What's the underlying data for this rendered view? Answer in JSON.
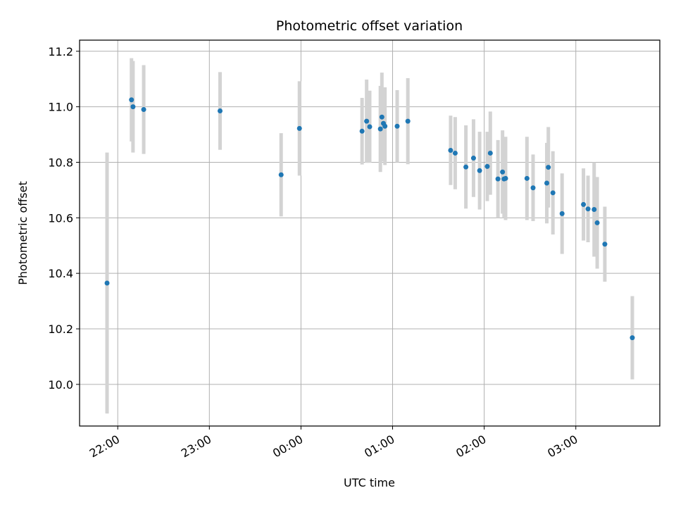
{
  "chart_data": {
    "type": "scatter",
    "title": "Photometric offset variation",
    "xlabel": "UTC time",
    "ylabel": "Photometric offset",
    "x_format": "HH:MM",
    "x_range": [
      "2000-01-01T21:35",
      "2000-01-02T03:55"
    ],
    "ylim": [
      9.85,
      11.24
    ],
    "grid": true,
    "x_ticks": [
      {
        "time": "2000-01-01T22:00",
        "label": "22:00"
      },
      {
        "time": "2000-01-01T23:00",
        "label": "23:00"
      },
      {
        "time": "2000-01-02T00:00",
        "label": "00:00"
      },
      {
        "time": "2000-01-02T01:00",
        "label": "01:00"
      },
      {
        "time": "2000-01-02T02:00",
        "label": "02:00"
      },
      {
        "time": "2000-01-02T03:00",
        "label": "03:00"
      }
    ],
    "y_ticks": [
      {
        "value": 10.0,
        "label": "10.0"
      },
      {
        "value": 10.2,
        "label": "10.2"
      },
      {
        "value": 10.4,
        "label": "10.4"
      },
      {
        "value": 10.6,
        "label": "10.6"
      },
      {
        "value": 10.8,
        "label": "10.8"
      },
      {
        "value": 11.0,
        "label": "11.0"
      },
      {
        "value": 11.2,
        "label": "11.2"
      }
    ],
    "marker_color": "#1f77b4",
    "errorbar_color": "#d3d3d3",
    "points": [
      {
        "x": "2000-01-01T21:53",
        "y": 10.365,
        "err": 0.47
      },
      {
        "x": "2000-01-01T22:09",
        "y": 11.025,
        "err": 0.15
      },
      {
        "x": "2000-01-01T22:10",
        "y": 11.0,
        "err": 0.165
      },
      {
        "x": "2000-01-01T22:17",
        "y": 10.99,
        "err": 0.16
      },
      {
        "x": "2000-01-01T23:07",
        "y": 10.985,
        "err": 0.14
      },
      {
        "x": "2000-01-01T23:47",
        "y": 10.755,
        "err": 0.15
      },
      {
        "x": "2000-01-01T23:59",
        "y": 10.922,
        "err": 0.17
      },
      {
        "x": "2000-01-02T00:40",
        "y": 10.912,
        "err": 0.12
      },
      {
        "x": "2000-01-02T00:43",
        "y": 10.948,
        "err": 0.15
      },
      {
        "x": "2000-01-02T00:45",
        "y": 10.928,
        "err": 0.13
      },
      {
        "x": "2000-01-02T00:52",
        "y": 10.92,
        "err": 0.155
      },
      {
        "x": "2000-01-02T00:53",
        "y": 10.963,
        "err": 0.16
      },
      {
        "x": "2000-01-02T00:54",
        "y": 10.94,
        "err": 0.13
      },
      {
        "x": "2000-01-02T00:55",
        "y": 10.93,
        "err": 0.14
      },
      {
        "x": "2000-01-02T01:03",
        "y": 10.93,
        "err": 0.13
      },
      {
        "x": "2000-01-02T01:10",
        "y": 10.948,
        "err": 0.155
      },
      {
        "x": "2000-01-02T01:38",
        "y": 10.843,
        "err": 0.125
      },
      {
        "x": "2000-01-02T01:41",
        "y": 10.833,
        "err": 0.13
      },
      {
        "x": "2000-01-02T01:48",
        "y": 10.783,
        "err": 0.15
      },
      {
        "x": "2000-01-02T01:53",
        "y": 10.815,
        "err": 0.14
      },
      {
        "x": "2000-01-02T01:57",
        "y": 10.77,
        "err": 0.14
      },
      {
        "x": "2000-01-02T02:02",
        "y": 10.785,
        "err": 0.125
      },
      {
        "x": "2000-01-02T02:04",
        "y": 10.833,
        "err": 0.15
      },
      {
        "x": "2000-01-02T02:09",
        "y": 10.74,
        "err": 0.14
      },
      {
        "x": "2000-01-02T02:12",
        "y": 10.765,
        "err": 0.15
      },
      {
        "x": "2000-01-02T02:13",
        "y": 10.74,
        "err": 0.14
      },
      {
        "x": "2000-01-02T02:14",
        "y": 10.742,
        "err": 0.15
      },
      {
        "x": "2000-01-02T02:28",
        "y": 10.742,
        "err": 0.15
      },
      {
        "x": "2000-01-02T02:32",
        "y": 10.708,
        "err": 0.12
      },
      {
        "x": "2000-01-02T02:41",
        "y": 10.725,
        "err": 0.145
      },
      {
        "x": "2000-01-02T02:42",
        "y": 10.782,
        "err": 0.145
      },
      {
        "x": "2000-01-02T02:45",
        "y": 10.69,
        "err": 0.15
      },
      {
        "x": "2000-01-02T02:51",
        "y": 10.615,
        "err": 0.145
      },
      {
        "x": "2000-01-02T03:05",
        "y": 10.648,
        "err": 0.13
      },
      {
        "x": "2000-01-02T03:08",
        "y": 10.632,
        "err": 0.12
      },
      {
        "x": "2000-01-02T03:12",
        "y": 10.63,
        "err": 0.17
      },
      {
        "x": "2000-01-02T03:14",
        "y": 10.582,
        "err": 0.165
      },
      {
        "x": "2000-01-02T03:19",
        "y": 10.505,
        "err": 0.135
      },
      {
        "x": "2000-01-02T03:37",
        "y": 10.168,
        "err": 0.15
      }
    ]
  }
}
